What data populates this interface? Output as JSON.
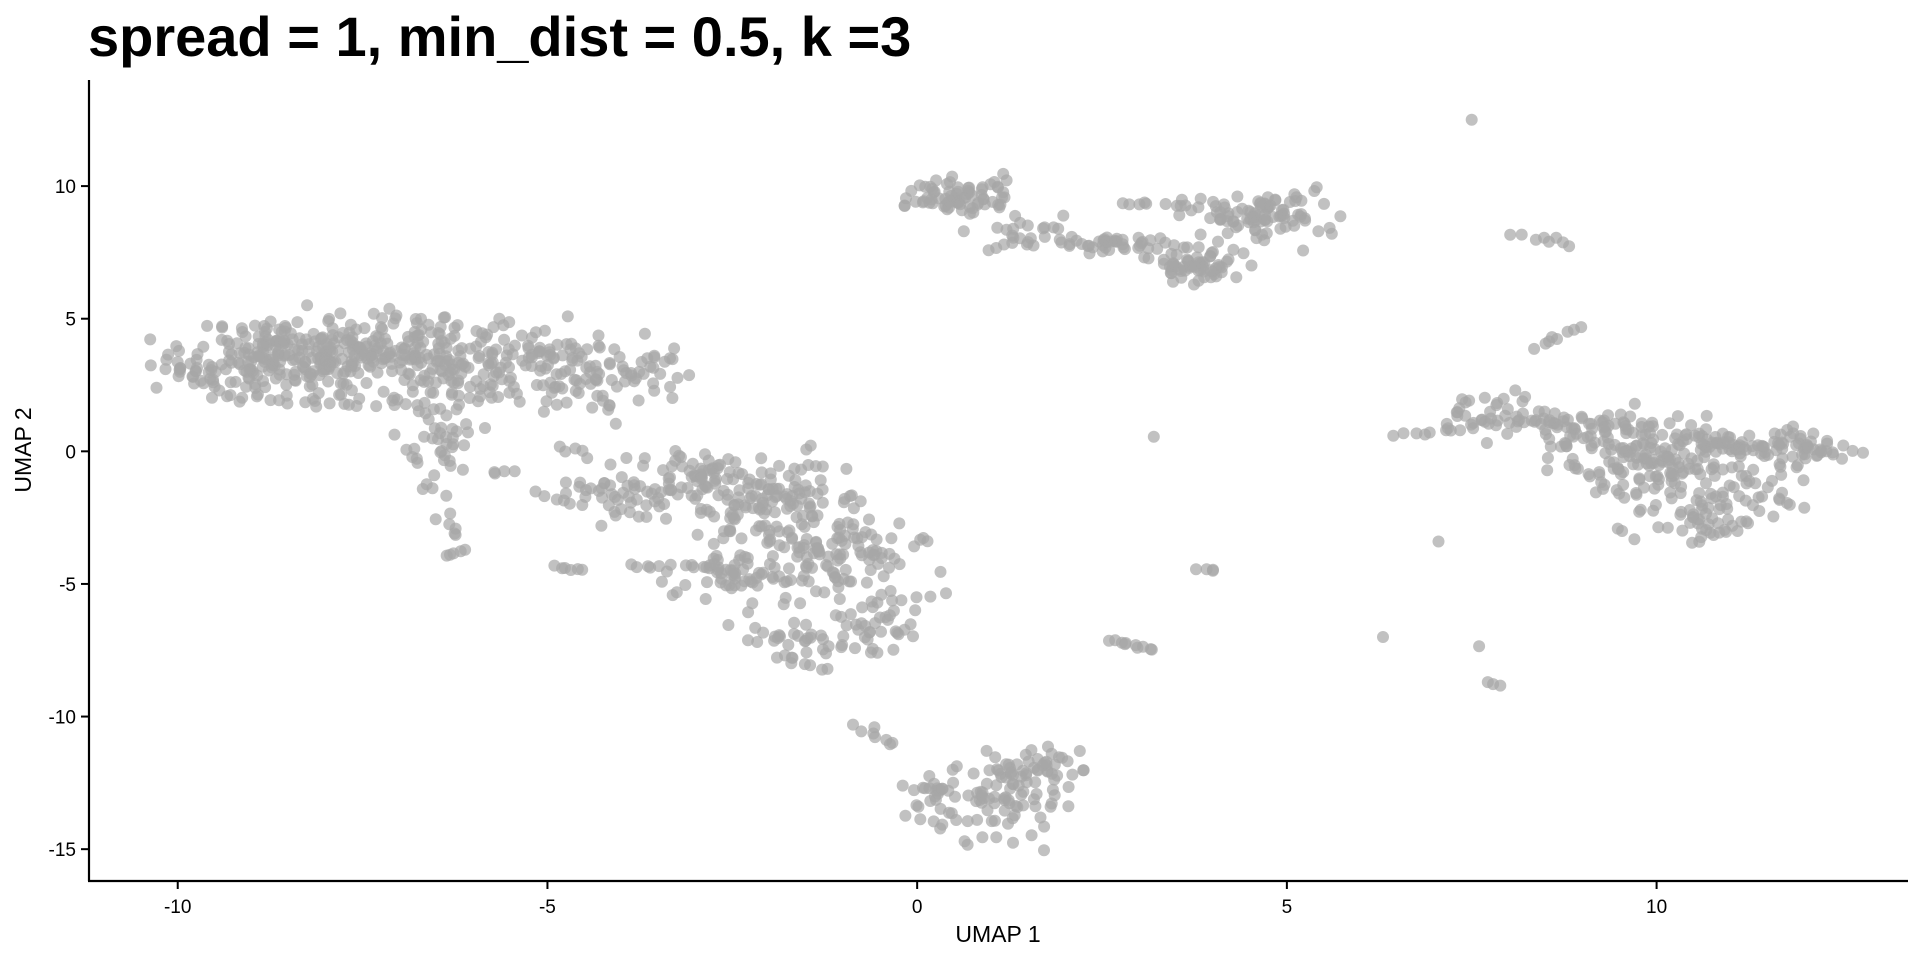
{
  "chart_data": {
    "type": "scatter",
    "title": "spread = 1, min_dist = 0.5, k =3",
    "xlabel": "UMAP 1",
    "ylabel": "UMAP 2",
    "xlim": [
      -11.2,
      13.4
    ],
    "ylim": [
      -16.2,
      14.0
    ],
    "xticks": [
      -10,
      -5,
      0,
      5,
      10
    ],
    "yticks": [
      -15,
      -10,
      -5,
      0,
      5,
      10
    ],
    "grid": false,
    "legend": "none",
    "point_color": "#A6A6A6",
    "point_opacity": 0.7,
    "clusters": [
      {
        "cx": -8.4,
        "cy": 3.6,
        "sx": 0.7,
        "sy": 0.7,
        "n": 230,
        "seed": 11
      },
      {
        "cx": -9.7,
        "cy": 3.1,
        "sx": 0.25,
        "sy": 0.35,
        "n": 25,
        "seed": 12
      },
      {
        "cx": -7.2,
        "cy": 3.5,
        "sx": 0.55,
        "sy": 0.9,
        "n": 80,
        "seed": 13
      },
      {
        "cx": -6.0,
        "cy": 3.3,
        "sx": 0.7,
        "sy": 0.8,
        "n": 110,
        "seed": 14
      },
      {
        "cx": -4.9,
        "cy": 3.8,
        "sx": 0.5,
        "sy": 0.5,
        "n": 45,
        "seed": 15
      },
      {
        "cx": -4.5,
        "cy": 2.3,
        "sx": 0.55,
        "sy": 0.5,
        "n": 40,
        "seed": 16
      },
      {
        "cx": -3.8,
        "cy": 3.1,
        "sx": 0.45,
        "sy": 0.5,
        "n": 30,
        "seed": 17
      },
      {
        "cx": -6.5,
        "cy": 0.3,
        "sx": 0.25,
        "sy": 1.0,
        "n": 45,
        "seed": 18
      },
      {
        "cx": -6.8,
        "cy": 4.6,
        "sx": 0.5,
        "sy": 0.15,
        "n": 15,
        "seed": 19
      },
      {
        "cx": -3.0,
        "cy": -1.3,
        "sx": 0.7,
        "sy": 0.6,
        "n": 90,
        "seed": 21
      },
      {
        "cx": -2.0,
        "cy": -1.8,
        "sx": 0.5,
        "sy": 0.8,
        "n": 90,
        "seed": 22
      },
      {
        "cx": -1.7,
        "cy": -4.0,
        "sx": 0.8,
        "sy": 1.0,
        "n": 110,
        "seed": 23
      },
      {
        "cx": -2.5,
        "cy": -4.8,
        "sx": 0.5,
        "sy": 0.4,
        "n": 35,
        "seed": 24
      },
      {
        "cx": -1.2,
        "cy": -7.1,
        "sx": 0.6,
        "sy": 0.3,
        "n": 40,
        "seed": 25
      },
      {
        "cx": -0.5,
        "cy": -6.0,
        "sx": 0.3,
        "sy": 0.8,
        "n": 25,
        "seed": 26
      },
      {
        "cx": -1.0,
        "cy": -3.5,
        "sx": 0.4,
        "sy": 0.5,
        "n": 35,
        "seed": 27
      },
      {
        "cx": -4.0,
        "cy": -1.8,
        "sx": 0.3,
        "sy": 0.5,
        "n": 25,
        "seed": 28
      },
      {
        "cx": 0.6,
        "cy": 9.6,
        "sx": 0.35,
        "sy": 0.35,
        "n": 70,
        "seed": 31
      },
      {
        "cx": 1.6,
        "cy": 8.3,
        "sx": 0.35,
        "sy": 0.3,
        "n": 20,
        "seed": 32
      },
      {
        "cx": 2.6,
        "cy": 7.8,
        "sx": 0.35,
        "sy": 0.15,
        "n": 40,
        "seed": 33
      },
      {
        "cx": 3.8,
        "cy": 7.0,
        "sx": 0.3,
        "sy": 0.4,
        "n": 60,
        "seed": 34
      },
      {
        "cx": 4.6,
        "cy": 8.9,
        "sx": 0.5,
        "sy": 0.45,
        "n": 90,
        "seed": 35
      },
      {
        "cx": 0.3,
        "cy": -13.3,
        "sx": 0.3,
        "sy": 0.6,
        "n": 35,
        "seed": 41
      },
      {
        "cx": 1.2,
        "cy": -12.9,
        "sx": 0.45,
        "sy": 0.8,
        "n": 70,
        "seed": 42
      },
      {
        "cx": 1.5,
        "cy": -11.8,
        "sx": 0.35,
        "sy": 0.4,
        "n": 30,
        "seed": 43
      },
      {
        "cx": 10.3,
        "cy": -0.5,
        "sx": 0.7,
        "sy": 0.85,
        "n": 160,
        "seed": 51
      },
      {
        "cx": 11.6,
        "cy": 0.1,
        "sx": 0.55,
        "sy": 0.35,
        "n": 70,
        "seed": 52
      },
      {
        "cx": 9.3,
        "cy": 0.6,
        "sx": 0.6,
        "sy": 0.55,
        "n": 70,
        "seed": 53
      },
      {
        "cx": 10.6,
        "cy": -2.4,
        "sx": 0.5,
        "sy": 0.5,
        "n": 45,
        "seed": 54
      },
      {
        "cx": 7.7,
        "cy": 1.3,
        "sx": 0.35,
        "sy": 0.3,
        "n": 30,
        "seed": 55
      },
      {
        "cx": 8.4,
        "cy": 1.2,
        "sx": 0.25,
        "sy": 0.2,
        "n": 20,
        "seed": 56
      }
    ],
    "segments": [
      {
        "x1": -9.5,
        "y1": 2.2,
        "x2": -7.7,
        "y2": 1.8,
        "n": 14,
        "jitter": 0.1,
        "seed": 61
      },
      {
        "x1": -4.9,
        "y1": 0.1,
        "x2": -4.6,
        "y2": 0.1,
        "n": 4,
        "jitter": 0.05,
        "seed": 62
      },
      {
        "x1": -5.8,
        "y1": -0.8,
        "x2": -5.5,
        "y2": -0.8,
        "n": 4,
        "jitter": 0.05,
        "seed": 63
      },
      {
        "x1": -6.4,
        "y1": -2.4,
        "x2": -6.2,
        "y2": -3.2,
        "n": 6,
        "jitter": 0.06,
        "seed": 64
      },
      {
        "x1": -6.4,
        "y1": -4.0,
        "x2": -6.1,
        "y2": -3.7,
        "n": 5,
        "jitter": 0.05,
        "seed": 65
      },
      {
        "x1": -4.9,
        "y1": -4.4,
        "x2": -4.5,
        "y2": -4.5,
        "n": 6,
        "jitter": 0.04,
        "seed": 66
      },
      {
        "x1": -4.7,
        "y1": -1.2,
        "x2": -4.2,
        "y2": -1.4,
        "n": 4,
        "jitter": 0.05,
        "seed": 67
      },
      {
        "x1": -3.7,
        "y1": -4.4,
        "x2": -2.5,
        "y2": -4.2,
        "n": 12,
        "jitter": 0.06,
        "seed": 68
      },
      {
        "x1": -1.8,
        "y1": -7.8,
        "x2": -1.2,
        "y2": -8.2,
        "n": 8,
        "jitter": 0.06,
        "seed": 69
      },
      {
        "x1": -0.8,
        "y1": -10.3,
        "x2": -0.3,
        "y2": -11.1,
        "n": 8,
        "jitter": 0.06,
        "seed": 70
      },
      {
        "x1": -0.2,
        "y1": -5.6,
        "x2": 0.4,
        "y2": -5.3,
        "n": 4,
        "jitter": 0.04,
        "seed": 71
      },
      {
        "x1": -0.2,
        "y1": 9.3,
        "x2": 0.2,
        "y2": 9.4,
        "n": 5,
        "jitter": 0.05,
        "seed": 72
      },
      {
        "x1": 0.9,
        "y1": 7.6,
        "x2": 1.3,
        "y2": 7.9,
        "n": 4,
        "jitter": 0.05,
        "seed": 73
      },
      {
        "x1": 2.7,
        "y1": 9.4,
        "x2": 3.6,
        "y2": 9.3,
        "n": 8,
        "jitter": 0.05,
        "seed": 74
      },
      {
        "x1": 3.0,
        "y1": 7.4,
        "x2": 3.3,
        "y2": 7.2,
        "n": 3,
        "jitter": 0.05,
        "seed": 75
      },
      {
        "x1": 5.1,
        "y1": 9.6,
        "x2": 5.4,
        "y2": 9.9,
        "n": 4,
        "jitter": 0.04,
        "seed": 76
      },
      {
        "x1": 2.6,
        "y1": -7.1,
        "x2": 3.2,
        "y2": -7.5,
        "n": 10,
        "jitter": 0.04,
        "seed": 77
      },
      {
        "x1": 3.8,
        "y1": -4.4,
        "x2": 3.95,
        "y2": -4.5,
        "n": 3,
        "jitter": 0.03,
        "seed": 78
      },
      {
        "x1": 6.5,
        "y1": 0.6,
        "x2": 7.3,
        "y2": 0.8,
        "n": 8,
        "jitter": 0.04,
        "seed": 79
      },
      {
        "x1": 8.1,
        "y1": 8.2,
        "x2": 8.9,
        "y2": 7.8,
        "n": 8,
        "jitter": 0.05,
        "seed": 80
      },
      {
        "x1": 8.4,
        "y1": 3.9,
        "x2": 8.9,
        "y2": 4.7,
        "n": 8,
        "jitter": 0.05,
        "seed": 81
      },
      {
        "x1": 8.1,
        "y1": 2.3,
        "x2": 8.2,
        "y2": 1.8,
        "n": 3,
        "jitter": 0.03,
        "seed": 82
      },
      {
        "x1": 7.7,
        "y1": -8.7,
        "x2": 7.9,
        "y2": -8.8,
        "n": 3,
        "jitter": 0.03,
        "seed": 83
      },
      {
        "x1": 8.8,
        "y1": -0.3,
        "x2": 9.4,
        "y2": -1.5,
        "n": 8,
        "jitter": 0.05,
        "seed": 84
      },
      {
        "x1": 10.4,
        "y1": -3.5,
        "x2": 11.0,
        "y2": -3.0,
        "n": 6,
        "jitter": 0.05,
        "seed": 85
      },
      {
        "x1": 11.6,
        "y1": -1.8,
        "x2": 12.0,
        "y2": -2.1,
        "n": 4,
        "jitter": 0.04,
        "seed": 86
      },
      {
        "x1": 12.0,
        "y1": 0.2,
        "x2": 12.3,
        "y2": 0.0,
        "n": 5,
        "jitter": 0.04,
        "seed": 87
      }
    ],
    "points": [
      [
        7.5,
        12.5
      ],
      [
        3.2,
        0.55
      ],
      [
        7.05,
        -3.4
      ],
      [
        6.3,
        -7.0
      ],
      [
        7.6,
        -7.35
      ],
      [
        2.2,
        -11.3
      ],
      [
        -7.8,
        5.2
      ],
      [
        4.0,
        -4.5
      ]
    ]
  }
}
